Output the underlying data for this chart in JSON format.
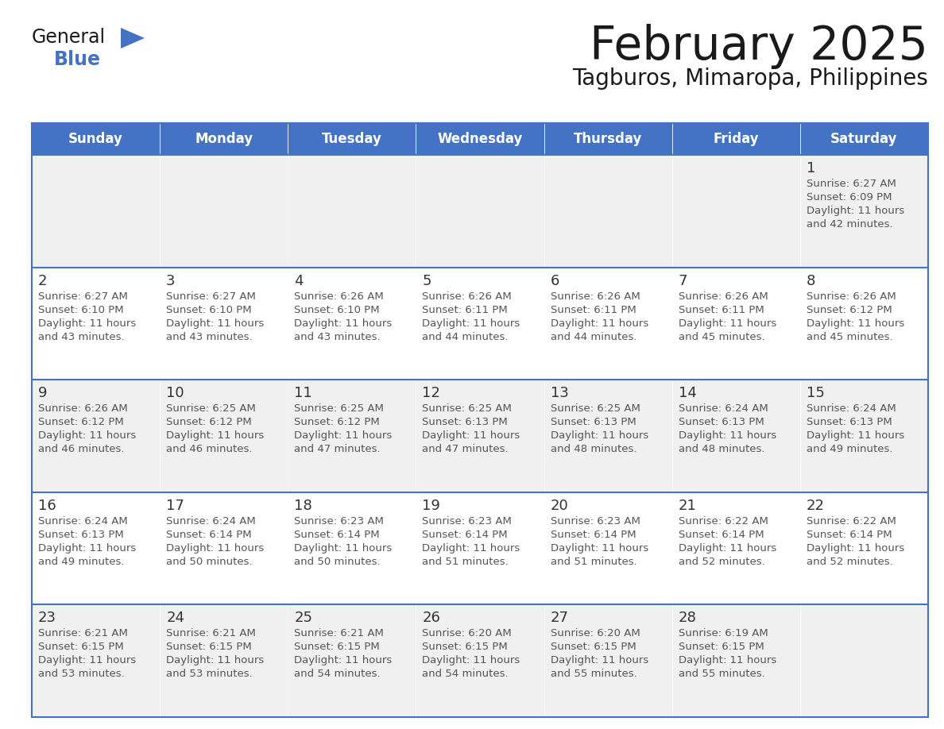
{
  "title": "February 2025",
  "subtitle": "Tagburos, Mimaropa, Philippines",
  "days_of_week": [
    "Sunday",
    "Monday",
    "Tuesday",
    "Wednesday",
    "Thursday",
    "Friday",
    "Saturday"
  ],
  "header_bg": "#4472C4",
  "header_text": "#FFFFFF",
  "cell_bg_odd": "#F0F0F0",
  "cell_bg_even": "#FFFFFF",
  "border_color": "#4472C4",
  "text_color": "#555555",
  "day_num_color": "#333333",
  "title_color": "#1a1a1a",
  "calendar_data": [
    [
      null,
      null,
      null,
      null,
      null,
      null,
      {
        "day": 1,
        "sunrise": "6:27 AM",
        "sunset": "6:09 PM",
        "daylight": "11 hours and 42 minutes."
      }
    ],
    [
      {
        "day": 2,
        "sunrise": "6:27 AM",
        "sunset": "6:10 PM",
        "daylight": "11 hours and 43 minutes."
      },
      {
        "day": 3,
        "sunrise": "6:27 AM",
        "sunset": "6:10 PM",
        "daylight": "11 hours and 43 minutes."
      },
      {
        "day": 4,
        "sunrise": "6:26 AM",
        "sunset": "6:10 PM",
        "daylight": "11 hours and 43 minutes."
      },
      {
        "day": 5,
        "sunrise": "6:26 AM",
        "sunset": "6:11 PM",
        "daylight": "11 hours and 44 minutes."
      },
      {
        "day": 6,
        "sunrise": "6:26 AM",
        "sunset": "6:11 PM",
        "daylight": "11 hours and 44 minutes."
      },
      {
        "day": 7,
        "sunrise": "6:26 AM",
        "sunset": "6:11 PM",
        "daylight": "11 hours and 45 minutes."
      },
      {
        "day": 8,
        "sunrise": "6:26 AM",
        "sunset": "6:12 PM",
        "daylight": "11 hours and 45 minutes."
      }
    ],
    [
      {
        "day": 9,
        "sunrise": "6:26 AM",
        "sunset": "6:12 PM",
        "daylight": "11 hours and 46 minutes."
      },
      {
        "day": 10,
        "sunrise": "6:25 AM",
        "sunset": "6:12 PM",
        "daylight": "11 hours and 46 minutes."
      },
      {
        "day": 11,
        "sunrise": "6:25 AM",
        "sunset": "6:12 PM",
        "daylight": "11 hours and 47 minutes."
      },
      {
        "day": 12,
        "sunrise": "6:25 AM",
        "sunset": "6:13 PM",
        "daylight": "11 hours and 47 minutes."
      },
      {
        "day": 13,
        "sunrise": "6:25 AM",
        "sunset": "6:13 PM",
        "daylight": "11 hours and 48 minutes."
      },
      {
        "day": 14,
        "sunrise": "6:24 AM",
        "sunset": "6:13 PM",
        "daylight": "11 hours and 48 minutes."
      },
      {
        "day": 15,
        "sunrise": "6:24 AM",
        "sunset": "6:13 PM",
        "daylight": "11 hours and 49 minutes."
      }
    ],
    [
      {
        "day": 16,
        "sunrise": "6:24 AM",
        "sunset": "6:13 PM",
        "daylight": "11 hours and 49 minutes."
      },
      {
        "day": 17,
        "sunrise": "6:24 AM",
        "sunset": "6:14 PM",
        "daylight": "11 hours and 50 minutes."
      },
      {
        "day": 18,
        "sunrise": "6:23 AM",
        "sunset": "6:14 PM",
        "daylight": "11 hours and 50 minutes."
      },
      {
        "day": 19,
        "sunrise": "6:23 AM",
        "sunset": "6:14 PM",
        "daylight": "11 hours and 51 minutes."
      },
      {
        "day": 20,
        "sunrise": "6:23 AM",
        "sunset": "6:14 PM",
        "daylight": "11 hours and 51 minutes."
      },
      {
        "day": 21,
        "sunrise": "6:22 AM",
        "sunset": "6:14 PM",
        "daylight": "11 hours and 52 minutes."
      },
      {
        "day": 22,
        "sunrise": "6:22 AM",
        "sunset": "6:14 PM",
        "daylight": "11 hours and 52 minutes."
      }
    ],
    [
      {
        "day": 23,
        "sunrise": "6:21 AM",
        "sunset": "6:15 PM",
        "daylight": "11 hours and 53 minutes."
      },
      {
        "day": 24,
        "sunrise": "6:21 AM",
        "sunset": "6:15 PM",
        "daylight": "11 hours and 53 minutes."
      },
      {
        "day": 25,
        "sunrise": "6:21 AM",
        "sunset": "6:15 PM",
        "daylight": "11 hours and 54 minutes."
      },
      {
        "day": 26,
        "sunrise": "6:20 AM",
        "sunset": "6:15 PM",
        "daylight": "11 hours and 54 minutes."
      },
      {
        "day": 27,
        "sunrise": "6:20 AM",
        "sunset": "6:15 PM",
        "daylight": "11 hours and 55 minutes."
      },
      {
        "day": 28,
        "sunrise": "6:19 AM",
        "sunset": "6:15 PM",
        "daylight": "11 hours and 55 minutes."
      },
      null
    ]
  ],
  "logo_text1": "General",
  "logo_text2": "Blue",
  "logo_color1": "#1a1a1a",
  "logo_color2": "#4472C4",
  "logo_triangle_color": "#4472C4",
  "fig_width": 11.88,
  "fig_height": 9.18,
  "dpi": 100
}
